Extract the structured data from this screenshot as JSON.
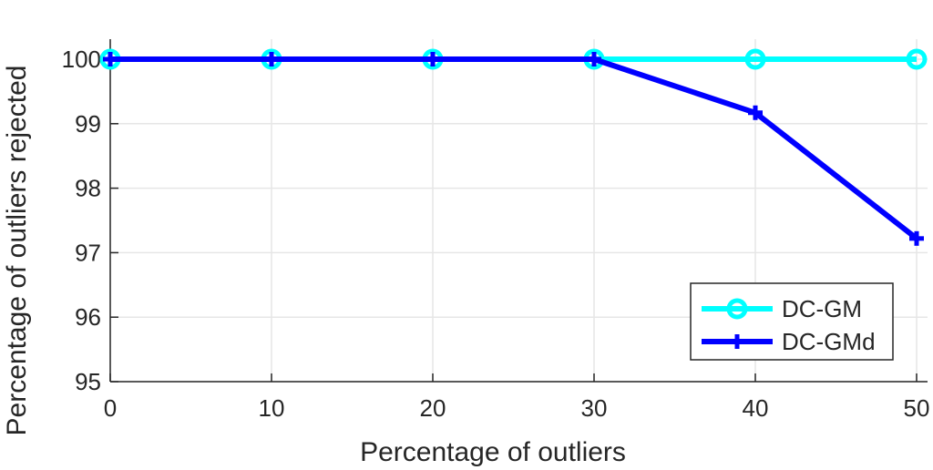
{
  "chart_data": {
    "type": "line",
    "title": "",
    "xlabel": "Percentage of outliers",
    "ylabel": "Percentage of outliers rejected",
    "x": [
      0,
      10,
      20,
      30,
      40,
      50
    ],
    "xlim": [
      0,
      50
    ],
    "ylim": [
      95,
      100
    ],
    "xticks": [
      "0",
      "10",
      "20",
      "30",
      "40",
      "50"
    ],
    "yticks": [
      "95",
      "96",
      "97",
      "98",
      "99",
      "100"
    ],
    "grid": true,
    "legend_position": "bottom-right",
    "series": [
      {
        "name": "DC-GM",
        "color": "#00ffff",
        "marker": "circle",
        "values": [
          100,
          100,
          100,
          100,
          100,
          100
        ]
      },
      {
        "name": "DC-GMd",
        "color": "#0000ff",
        "marker": "plus",
        "values": [
          100,
          100,
          100,
          100,
          99.17,
          97.22
        ]
      }
    ]
  }
}
